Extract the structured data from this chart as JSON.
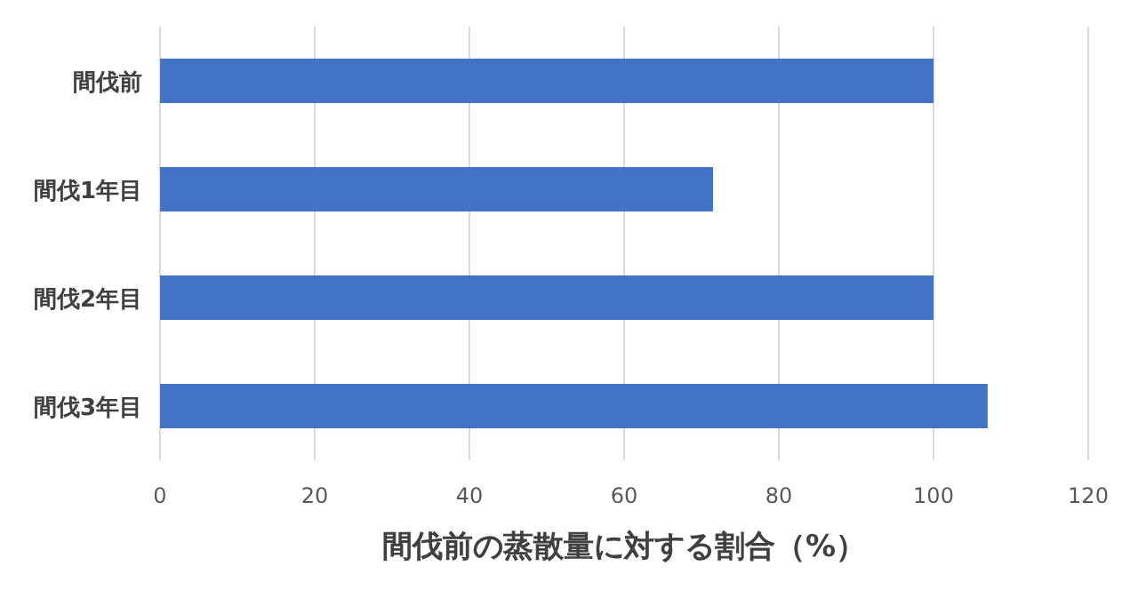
{
  "chart_data": {
    "type": "bar",
    "orientation": "horizontal",
    "xlabel": "間伐前の蒸散量に対する割合（%）",
    "categories": [
      "間伐前",
      "間伐1年目",
      "間伐2年目",
      "間伐3年目"
    ],
    "values": [
      100,
      71.5,
      100,
      107
    ],
    "color": "#4472c4",
    "xlim": [
      0,
      120
    ],
    "xticks": [
      0,
      20,
      40,
      60,
      80,
      100,
      120
    ],
    "grid": "x"
  }
}
